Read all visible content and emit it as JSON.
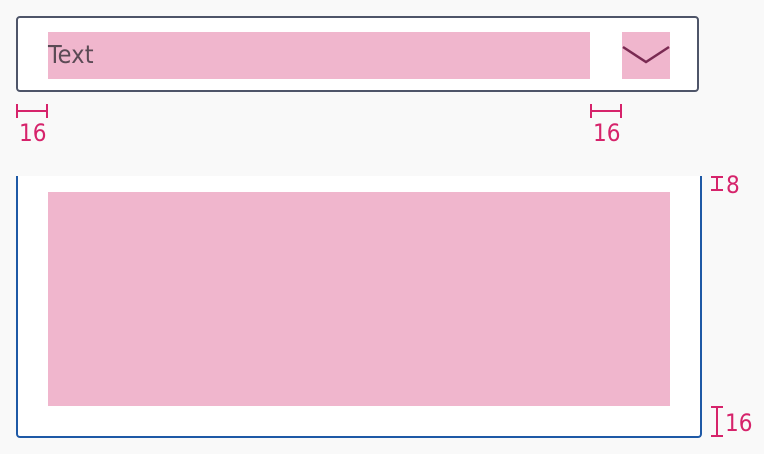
{
  "field": {
    "text": "Text"
  },
  "annotations": {
    "text_padding_left": "16",
    "chevron_padding_left": "16",
    "list_padding_top": "8",
    "list_padding_bottom": "16"
  },
  "icons": {
    "field_chevron": "chevron-down-icon"
  },
  "colors": {
    "placeholder_fill": "#f0b6cd",
    "field_border": "#4e5569",
    "list_border": "#1e59a6",
    "annotation": "#d6236b",
    "chevron": "#7a2a52",
    "text": "#5b4a55",
    "background": "#f9f9f9"
  }
}
